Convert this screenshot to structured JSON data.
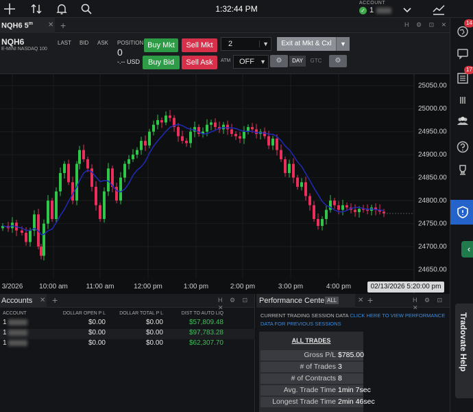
{
  "topbar": {
    "time": "1:32:44 PM",
    "account_label": "ACCOUNT",
    "account_id": "1",
    "icons": [
      "crosshair-icon",
      "sort-arrows-icon",
      "bell-icon",
      "search-icon",
      "chevron-down-icon",
      "trend-line-icon"
    ]
  },
  "chart": {
    "tab_label": "NQH6 5",
    "tab_superscript": "m",
    "symbol": "NQH6",
    "description": "E-MINI NASDAQ 100",
    "last_label": "LAST",
    "bid_label": "BID",
    "ask_label": "ASK",
    "position_label": "POSITION",
    "position_value": "0",
    "position_usd": "-.-- USD",
    "buy_mkt": "Buy Mkt",
    "sell_mkt": "Sell Mkt",
    "buy_bid": "Buy Bid",
    "sell_ask": "Sell Ask",
    "quantity": "2",
    "exit_btn": "Exit at Mkt & Cxl",
    "atm_label": "ATM",
    "atm_value": "OFF",
    "day_btn": "DAY",
    "gtc_btn": "GTC",
    "current_date_time": "02/13/2026 5:20:00 pm"
  },
  "chart_data": {
    "type": "candlestick",
    "x_tick_labels": [
      "3/2026",
      "10:00 am",
      "11:00 am",
      "12:00 pm",
      "1:00 pm",
      "2:00 pm",
      "3:00 pm",
      "4:00 pm"
    ],
    "y_tick_labels": [
      "25050.00",
      "25000.00",
      "24950.00",
      "24900.00",
      "24850.00",
      "24800.00",
      "24750.00",
      "24700.00",
      "24650.00"
    ],
    "ylim": [
      24630,
      25075
    ],
    "moving_average_color": "#1f2bb8",
    "up_color": "#2fc64a",
    "down_color": "#e8305a",
    "close_path": [
      [
        0,
        24745
      ],
      [
        8,
        24740
      ],
      [
        14,
        24752
      ],
      [
        20,
        24735
      ],
      [
        28,
        24730
      ],
      [
        34,
        24710
      ],
      [
        40,
        24735
      ],
      [
        46,
        24770
      ],
      [
        52,
        24700
      ],
      [
        56,
        24680
      ],
      [
        60,
        24750
      ],
      [
        66,
        24800
      ],
      [
        72,
        24760
      ],
      [
        78,
        24820
      ],
      [
        84,
        24860
      ],
      [
        90,
        24880
      ],
      [
        96,
        24840
      ],
      [
        102,
        24800
      ],
      [
        108,
        24880
      ],
      [
        112,
        24910
      ],
      [
        118,
        24890
      ],
      [
        124,
        24870
      ],
      [
        130,
        24830
      ],
      [
        136,
        24790
      ],
      [
        142,
        24760
      ],
      [
        148,
        24820
      ],
      [
        154,
        24870
      ],
      [
        160,
        24830
      ],
      [
        166,
        24800
      ],
      [
        172,
        24850
      ],
      [
        178,
        24880
      ],
      [
        184,
        24890
      ],
      [
        190,
        24900
      ],
      [
        196,
        24910
      ],
      [
        202,
        24930
      ],
      [
        208,
        24920
      ],
      [
        214,
        24950
      ],
      [
        220,
        24965
      ],
      [
        226,
        24975
      ],
      [
        232,
        24970
      ],
      [
        238,
        24985
      ],
      [
        244,
        24980
      ],
      [
        250,
        24960
      ],
      [
        256,
        24940
      ],
      [
        262,
        24930
      ],
      [
        268,
        24925
      ],
      [
        274,
        24950
      ],
      [
        280,
        24960
      ],
      [
        286,
        24945
      ],
      [
        292,
        24950
      ],
      [
        298,
        24965
      ],
      [
        304,
        24970
      ],
      [
        310,
        24960
      ],
      [
        316,
        24955
      ],
      [
        322,
        24965
      ],
      [
        328,
        24955
      ],
      [
        334,
        24945
      ],
      [
        340,
        24940
      ],
      [
        346,
        24935
      ],
      [
        352,
        24950
      ],
      [
        358,
        24960
      ],
      [
        364,
        24955
      ],
      [
        370,
        24945
      ],
      [
        376,
        24950
      ],
      [
        382,
        24940
      ],
      [
        388,
        24920
      ],
      [
        394,
        24935
      ],
      [
        400,
        24910
      ],
      [
        406,
        24890
      ],
      [
        412,
        24860
      ],
      [
        418,
        24880
      ],
      [
        424,
        24850
      ],
      [
        430,
        24830
      ],
      [
        436,
        24840
      ],
      [
        442,
        24810
      ],
      [
        448,
        24790
      ],
      [
        454,
        24760
      ],
      [
        460,
        24745
      ],
      [
        466,
        24760
      ],
      [
        472,
        24780
      ],
      [
        478,
        24800
      ],
      [
        484,
        24790
      ],
      [
        490,
        24780
      ],
      [
        496,
        24790
      ],
      [
        502,
        24785
      ],
      [
        508,
        24780
      ],
      [
        514,
        24775
      ],
      [
        520,
        24782
      ],
      [
        526,
        24780
      ],
      [
        532,
        24778
      ],
      [
        538,
        24785
      ],
      [
        544,
        24780
      ],
      [
        550,
        24776
      ],
      [
        556,
        24772
      ]
    ]
  },
  "accounts": {
    "tab_label": "Accounts",
    "headers": [
      "ACCOUNT",
      "DOLLAR OPEN P L",
      "DOLLAR TOTAL P L",
      "DIST TO AUTO LIQ"
    ],
    "rows": [
      {
        "account": "1",
        "open_pl": "$0.00",
        "total_pl": "$0.00",
        "dist": "$57,809.48"
      },
      {
        "account": "1",
        "open_pl": "$0.00",
        "total_pl": "$0.00",
        "dist": "$97,783.28"
      },
      {
        "account": "1",
        "open_pl": "$0.00",
        "total_pl": "$0.00",
        "dist": "$62,307.70"
      }
    ]
  },
  "performance": {
    "tab_label": "Performance Center",
    "all_label": "ALL",
    "session_text": "CURRENT TRADING SESSION DATA",
    "session_link": "CLICK HERE TO VIEW PERFORMANCE DATA FOR PREVIOUS SESSIONS",
    "box_title": "ALL TRADES",
    "rows": [
      {
        "label": "Gross P/L",
        "value": "$785.00"
      },
      {
        "label": "# of Trades",
        "value": "3"
      },
      {
        "label": "# of Contracts",
        "value": "8"
      },
      {
        "label": "Avg. Trade Time",
        "value": "1min 7sec"
      },
      {
        "label": "Longest Trade Time",
        "value": "2min 46sec"
      }
    ]
  },
  "sidebar": {
    "badges": [
      "14",
      "17"
    ],
    "help_label": "Tradovate Help"
  }
}
